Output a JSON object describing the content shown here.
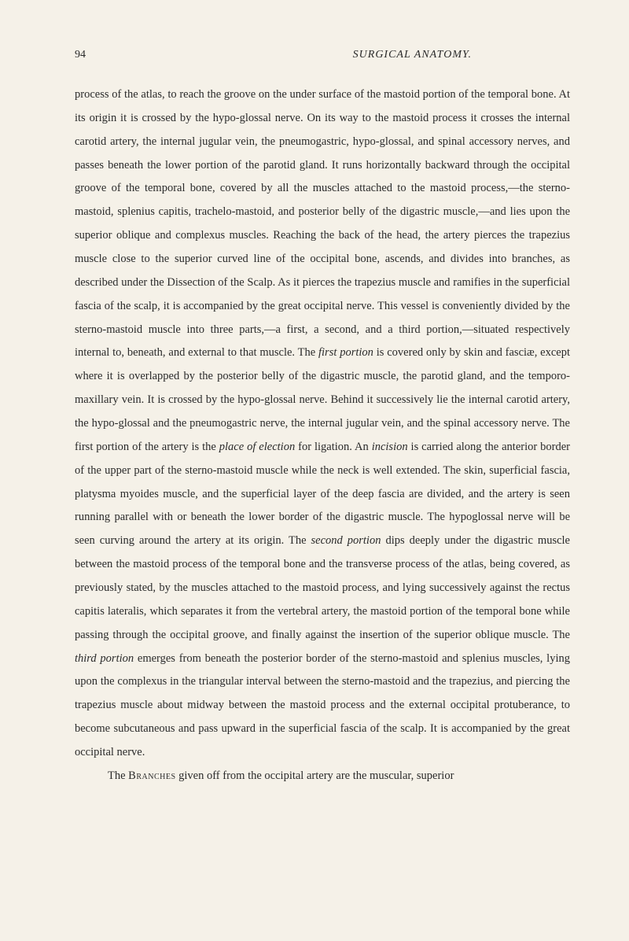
{
  "header": {
    "pageNumber": "94",
    "title": "SURGICAL ANATOMY."
  },
  "paragraphs": {
    "p1_part1": "process of the atlas, to reach the groove on the under surface of the mastoid portion of the temporal bone. At its origin it is crossed by the hypo-glossal nerve. On its way to the mastoid process it crosses the internal carotid artery, the internal jugular vein, the pneumogastric, hypo-glossal, and spinal accessory nerves, and passes beneath the lower portion of the parotid gland. It runs horizontally backward through the occipital groove of the temporal bone, covered by all the muscles attached to the mastoid process,—the sterno-mastoid, splenius capitis, trachelo-mastoid, and posterior belly of the digastric muscle,—and lies upon the superior oblique and complexus muscles. Reaching the back of the head, the artery pierces the trapezius muscle close to the superior curved line of the occipital bone, ascends, and divides into branches, as described under the Dissection of the Scalp. As it pierces the trapezius muscle and ramifies in the superficial fascia of the scalp, it is accompanied by the great occipital nerve. This vessel is conveniently divided by the sterno-mastoid muscle into three parts,—a first, a second, and a third portion,—situated respectively internal to, beneath, and external to that muscle. The ",
    "p1_italic1": "first portion",
    "p1_part2": " is covered only by skin and fasciæ, except where it is overlapped by the posterior belly of the digastric muscle, the parotid gland, and the temporo-maxillary vein. It is crossed by the hypo-glossal nerve. Behind it successively lie the internal carotid artery, the hypo-glossal and the pneumogastric nerve, the internal jugular vein, and the spinal accessory nerve. The first portion of the artery is the ",
    "p1_italic2": "place of election",
    "p1_part3": " for ligation. An ",
    "p1_italic3": "incision",
    "p1_part4": " is carried along the anterior border of the upper part of the sterno-mastoid muscle while the neck is well extended. The skin, superficial fascia, platysma myoides muscle, and the superficial layer of the deep fascia are divided, and the artery is seen running parallel with or beneath the lower border of the digastric muscle. The hypoglossal nerve will be seen curving around the artery at its origin. The ",
    "p1_italic4": "second portion",
    "p1_part5": " dips deeply under the digastric muscle between the mastoid process of the temporal bone and the transverse process of the atlas, being covered, as previously stated, by the muscles attached to the mastoid process, and lying successively against the rectus capitis lateralis, which separates it from the vertebral artery, the mastoid portion of the temporal bone while passing through the occipital groove, and finally against the insertion of the superior oblique muscle. The ",
    "p1_italic5": "third portion",
    "p1_part6": " emerges from beneath the posterior border of the sterno-mastoid and splenius muscles, lying upon the complexus in the triangular interval between the sterno-mastoid and the trapezius, and piercing the trapezius muscle about midway between the mastoid process and the external occipital protuberance, to become subcutaneous and pass upward in the superficial fascia of the scalp. It is accompanied by the great occipital nerve.",
    "p2_part1": "The ",
    "p2_smallcaps": "Branches",
    "p2_part2": " given off from the occipital artery are the muscular, superior"
  }
}
